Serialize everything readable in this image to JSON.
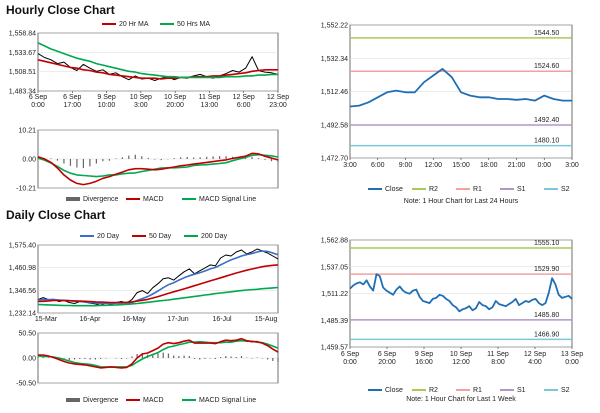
{
  "sections": [
    {
      "title": "Hourly Close Chart"
    },
    {
      "title": "Daily Close Chart"
    }
  ],
  "colors": {
    "price": "#000000",
    "ma_red": "#c00000",
    "ma_green": "#00a84f",
    "ma_blue": "#3a6fc4",
    "close": "#1f6fb5",
    "r2": "#a7c956",
    "r1": "#f2a0a0",
    "s1": "#b395c9",
    "s2": "#7fc5d9",
    "divergence": "#666666",
    "grid": "#d8d8d8"
  },
  "chart_data": [
    {
      "id": "hourly-price",
      "type": "line",
      "legend": [
        "20 Hr MA",
        "50 Hrs MA"
      ],
      "yticks": [
        "1,558.84",
        "1,533.67",
        "1,508.51",
        "1,483.34"
      ],
      "ylim": [
        1483.34,
        1558.84
      ],
      "xticks": [
        "6 Sep\n0:00",
        "6 Sep\n17:00",
        "9 Sep\n10:00",
        "10 Sep\n3:00",
        "10 Sep\n20:00",
        "11 Sep\n13:00",
        "12 Sep\n6:00",
        "12 Sep\n23:00"
      ],
      "series": [
        {
          "name": "Price",
          "values": [
            1532,
            1527,
            1524,
            1519,
            1521,
            1514,
            1510,
            1518,
            1513,
            1509,
            1511,
            1505,
            1507,
            1502,
            1498,
            1503,
            1499,
            1500,
            1497,
            1500,
            1502,
            1498,
            1501,
            1500,
            1503,
            1505,
            1502,
            1500,
            1503,
            1506,
            1510,
            1508,
            1513,
            1528,
            1510,
            1508,
            1507,
            1505
          ]
        },
        {
          "name": "20 Hr MA",
          "values": [
            1524,
            1522,
            1520,
            1518,
            1516,
            1514,
            1513,
            1511,
            1510,
            1508,
            1507,
            1505,
            1504,
            1503,
            1502,
            1501,
            1500,
            1500,
            1500,
            1499,
            1500,
            1500,
            1501,
            1501,
            1502,
            1502,
            1502,
            1503,
            1503,
            1504,
            1505,
            1506,
            1507,
            1509,
            1510,
            1511,
            1511,
            1511
          ]
        },
        {
          "name": "50 Hrs MA",
          "values": [
            1546,
            1542,
            1538,
            1535,
            1532,
            1529,
            1526,
            1524,
            1522,
            1519,
            1517,
            1515,
            1513,
            1511,
            1509,
            1508,
            1506,
            1505,
            1504,
            1503,
            1502,
            1502,
            1501,
            1501,
            1501,
            1501,
            1501,
            1501,
            1501,
            1502,
            1502,
            1502,
            1503,
            1503,
            1504,
            1504,
            1505,
            1505
          ]
        }
      ]
    },
    {
      "id": "hourly-macd",
      "type": "line",
      "legend": [
        "Divergence",
        "MACD",
        "MACD Signal Line"
      ],
      "yticks": [
        "10.21",
        "0.00",
        "-10.21"
      ],
      "ylim": [
        -10.21,
        10.21
      ],
      "series": [
        {
          "name": "Divergence",
          "values": [
            0.5,
            0.4,
            0.2,
            -0.6,
            -1.6,
            -2.4,
            -3.0,
            -3.2,
            -2.6,
            -1.6,
            -0.8,
            -0.6,
            0.2,
            0.6,
            1.2,
            1.5,
            1.0,
            0.4,
            -0.2,
            -0.4,
            -0.1,
            0.3,
            0.6,
            0.7,
            0.5,
            0.6,
            0.8,
            0.9,
            1.0,
            1.0,
            0.8,
            0.6,
            0.4,
            0.7,
            0.3,
            -0.3,
            -0.8,
            -1.0
          ]
        },
        {
          "name": "MACD",
          "values": [
            0.8,
            0.0,
            -1.2,
            -3.2,
            -5.6,
            -7.4,
            -8.6,
            -9.0,
            -8.6,
            -7.8,
            -6.8,
            -6.2,
            -5.4,
            -4.6,
            -3.8,
            -3.4,
            -3.4,
            -3.6,
            -3.8,
            -3.6,
            -3.2,
            -2.8,
            -2.4,
            -2.1,
            -1.8,
            -1.5,
            -1.2,
            -0.9,
            -0.6,
            -0.3,
            0.2,
            0.6,
            1.0,
            2.0,
            1.8,
            1.0,
            0.3,
            -0.3
          ]
        },
        {
          "name": "MACD Signal Line",
          "values": [
            0.3,
            -0.4,
            -1.4,
            -2.6,
            -4.0,
            -5.0,
            -5.6,
            -5.8,
            -6.0,
            -6.2,
            -6.0,
            -5.6,
            -5.6,
            -5.2,
            -5.0,
            -4.9,
            -4.4,
            -4.0,
            -3.6,
            -3.2,
            -3.1,
            -3.1,
            -3.0,
            -2.8,
            -2.3,
            -2.1,
            -2.0,
            -1.8,
            -1.6,
            -1.3,
            -0.6,
            0.0,
            0.6,
            1.3,
            1.5,
            1.3,
            1.1,
            0.7
          ]
        }
      ]
    },
    {
      "id": "hourly-close",
      "type": "line",
      "yticks": [
        "1,552.22",
        "1,532.34",
        "1,512.46",
        "1,492.58",
        "1,472.70"
      ],
      "ylim": [
        1472.7,
        1552.22
      ],
      "xticks": [
        "3:00",
        "6:00",
        "9:00",
        "12:00",
        "15:00",
        "18:00",
        "21:00",
        "0:00",
        "3:00"
      ],
      "levels": [
        {
          "name": "R2",
          "value": 1544.5,
          "label": "1544.50"
        },
        {
          "name": "R1",
          "value": 1524.6,
          "label": "1524.60"
        },
        {
          "name": "S1",
          "value": 1492.4,
          "label": "1492.40"
        },
        {
          "name": "S2",
          "value": 1480.1,
          "label": "1480.10"
        }
      ],
      "series": [
        {
          "name": "Close",
          "values": [
            1503.5,
            1504.0,
            1506.0,
            1509.0,
            1512.0,
            1513.0,
            1512.0,
            1512.0,
            1518.0,
            1522.0,
            1526.0,
            1521.0,
            1512.0,
            1510.0,
            1509.0,
            1509.0,
            1508.0,
            1508.0,
            1507.5,
            1508.0,
            1507.0,
            1510.0,
            1508.0,
            1507.0,
            1507.0
          ]
        }
      ],
      "legend": [
        "Close",
        "R2",
        "R1",
        "S1",
        "S2"
      ],
      "note": "Note: 1 Hour Chart for Last 24 Hours"
    },
    {
      "id": "daily-price",
      "type": "line",
      "legend": [
        "20 Day",
        "50 Day",
        "200 Day"
      ],
      "yticks": [
        "1,575.40",
        "1,460.98",
        "1,346.56",
        "1,232.14"
      ],
      "ylim": [
        1232.14,
        1575.4
      ],
      "xticks": [
        "15-Mar",
        "16-Apr",
        "16-May",
        "17-Jun",
        "16-Jul",
        "15-Aug"
      ],
      "series": [
        {
          "name": "Price",
          "values": [
            1300,
            1310,
            1300,
            1302,
            1290,
            1295,
            1285,
            1280,
            1290,
            1286,
            1282,
            1278,
            1270,
            1284,
            1275,
            1285,
            1290,
            1282,
            1300,
            1335,
            1345,
            1330,
            1360,
            1380,
            1405,
            1410,
            1398,
            1420,
            1440,
            1455,
            1430,
            1445,
            1460,
            1475,
            1470,
            1510,
            1525,
            1520,
            1540,
            1550,
            1530,
            1540,
            1555,
            1545,
            1535,
            1520,
            1505
          ]
        },
        {
          "name": "20 Day",
          "values": [
            1298,
            1300,
            1300,
            1300,
            1298,
            1296,
            1294,
            1292,
            1290,
            1288,
            1285,
            1282,
            1280,
            1281,
            1281,
            1282,
            1283,
            1282,
            1285,
            1295,
            1305,
            1315,
            1328,
            1343,
            1360,
            1375,
            1385,
            1398,
            1410,
            1420,
            1428,
            1435,
            1444,
            1455,
            1462,
            1475,
            1488,
            1500,
            1510,
            1520,
            1527,
            1532,
            1540,
            1545,
            1543,
            1535,
            1526
          ]
        },
        {
          "name": "50 Day",
          "values": [
            1290,
            1291,
            1293,
            1295,
            1295,
            1295,
            1294,
            1293,
            1292,
            1291,
            1290,
            1288,
            1287,
            1286,
            1285,
            1285,
            1285,
            1286,
            1288,
            1292,
            1296,
            1301,
            1308,
            1315,
            1323,
            1331,
            1339,
            1346,
            1354,
            1362,
            1370,
            1378,
            1386,
            1394,
            1402,
            1410,
            1418,
            1426,
            1434,
            1441,
            1448,
            1454,
            1460,
            1466,
            1470,
            1473,
            1475
          ]
        },
        {
          "name": "200 Day",
          "values": [
            1275,
            1274,
            1273,
            1272,
            1271,
            1270,
            1270,
            1269,
            1269,
            1269,
            1269,
            1269,
            1270,
            1271,
            1272,
            1273,
            1274,
            1276,
            1278,
            1280,
            1283,
            1286,
            1289,
            1292,
            1295,
            1298,
            1302,
            1305,
            1309,
            1312,
            1316,
            1319,
            1323,
            1326,
            1330,
            1333,
            1336,
            1339,
            1342,
            1345,
            1348,
            1350,
            1352,
            1355,
            1357,
            1359,
            1361
          ]
        }
      ]
    },
    {
      "id": "daily-macd",
      "type": "line",
      "legend": [
        "Divergence",
        "MACD",
        "MACD Signal Line"
      ],
      "yticks": [
        "50.50",
        "0.00",
        "-50.50"
      ],
      "ylim": [
        -50.5,
        50.5
      ],
      "series": [
        {
          "name": "Divergence",
          "values": [
            2,
            3,
            1,
            -1,
            -3,
            -4,
            -4,
            -3,
            -2,
            -2,
            -3,
            -3,
            -2,
            -1,
            0,
            -1,
            -2,
            -1,
            3,
            8,
            10,
            7,
            8,
            9,
            11,
            9,
            5,
            4,
            5,
            4,
            -2,
            -3,
            -2,
            -1,
            -2,
            2,
            4,
            3,
            2,
            4,
            1,
            -1,
            1,
            -1,
            -3,
            -6,
            -8
          ]
        },
        {
          "name": "MACD",
          "values": [
            6,
            6,
            4,
            1,
            -3,
            -7,
            -10,
            -12,
            -13,
            -14,
            -16,
            -18,
            -20,
            -19,
            -18,
            -19,
            -20,
            -19,
            -12,
            0,
            8,
            10,
            15,
            20,
            28,
            31,
            29,
            31,
            34,
            36,
            30,
            30,
            30,
            30,
            29,
            33,
            36,
            35,
            36,
            39,
            35,
            33,
            33,
            30,
            25,
            18,
            12
          ]
        },
        {
          "name": "MACD Signal Line",
          "values": [
            4,
            3,
            3,
            2,
            0,
            -3,
            -6,
            -9,
            -11,
            -12,
            -13,
            -15,
            -18,
            -18,
            -18,
            -18,
            -18,
            -18,
            -15,
            -8,
            -2,
            3,
            7,
            11,
            17,
            22,
            24,
            27,
            29,
            32,
            32,
            33,
            32,
            31,
            31,
            31,
            32,
            32,
            34,
            35,
            34,
            34,
            32,
            31,
            28,
            24,
            20
          ]
        }
      ]
    },
    {
      "id": "daily-close",
      "type": "line",
      "yticks": [
        "1,562.88",
        "1,537.05",
        "1,511.22",
        "1,485.39",
        "1,459.57"
      ],
      "ylim": [
        1459.57,
        1562.88
      ],
      "xticks": [
        "6 Sep\n0:00",
        "6 Sep\n20:00",
        "9 Sep\n16:00",
        "10 Sep\n12:00",
        "11 Sep\n8:00",
        "12 Sep\n4:00",
        "13 Sep\n0:00"
      ],
      "levels": [
        {
          "name": "R2",
          "value": 1555.1,
          "label": "1555.10"
        },
        {
          "name": "R1",
          "value": 1529.9,
          "label": "1529.90"
        },
        {
          "name": "S1",
          "value": 1485.8,
          "label": "1485.80"
        },
        {
          "name": "S2",
          "value": 1466.9,
          "label": "1466.90"
        }
      ],
      "series": [
        {
          "name": "Close",
          "values": [
            1516,
            1519,
            1521,
            1522,
            1520,
            1524,
            1518,
            1514,
            1530,
            1528,
            1517,
            1514,
            1512,
            1510,
            1515,
            1518,
            1514,
            1512,
            1511,
            1514,
            1515,
            1508,
            1504,
            1503,
            1502,
            1506,
            1507,
            1510,
            1509,
            1506,
            1504,
            1500,
            1498,
            1494,
            1496,
            1497,
            1499,
            1495,
            1497,
            1503,
            1500,
            1499,
            1496,
            1498,
            1504,
            1501,
            1500,
            1499,
            1501,
            1503,
            1506,
            1500,
            1502,
            1504,
            1503,
            1505,
            1506,
            1502,
            1500,
            1502,
            1512,
            1526,
            1520,
            1510,
            1507,
            1508,
            1509,
            1506
          ]
        }
      ],
      "legend": [
        "Close",
        "R2",
        "R1",
        "S1",
        "S2"
      ],
      "note": "Note: 1 Hour Chart for Last 1 Week"
    }
  ]
}
